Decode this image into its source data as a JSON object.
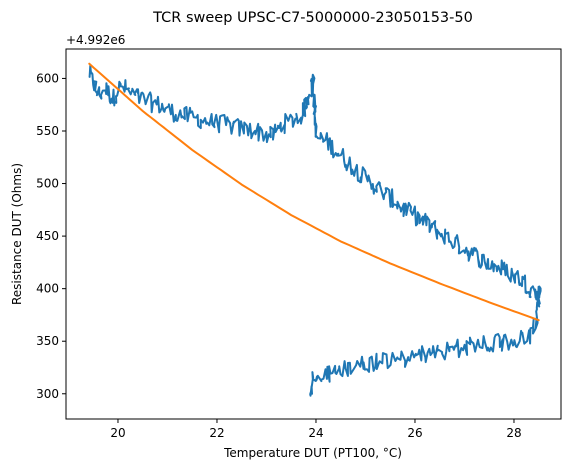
{
  "chart_data": {
    "type": "line",
    "title": "TCR sweep UPSC-C7-5000000-23050153-50",
    "xlabel": "Temperature DUT (PT100, °C)",
    "ylabel": "Resistance DUT (Ohms)",
    "offset_label": "+4.992e6",
    "xlim": [
      18.95,
      28.95
    ],
    "ylim": [
      276,
      628
    ],
    "x_ticks": [
      20,
      22,
      24,
      26,
      28
    ],
    "y_ticks": [
      300,
      350,
      400,
      450,
      500,
      550,
      600
    ],
    "grid": false,
    "legend": "none",
    "series": [
      {
        "color": "#1f77b4",
        "noise": 9,
        "anchors": {
          "x": [
            19.42,
            19.5,
            19.6,
            19.75,
            19.9,
            20.0,
            20.1,
            20.3,
            20.5,
            20.8,
            21.0,
            21.3,
            21.6,
            21.9,
            22.2,
            22.5,
            22.8,
            23.1,
            23.3,
            23.5,
            23.7,
            23.8,
            23.85,
            23.9,
            23.95,
            24.0,
            24.3,
            24.6,
            25.0,
            25.4,
            25.8,
            26.2,
            26.6,
            27.0,
            27.4,
            27.8,
            28.1,
            28.3,
            28.45,
            28.5,
            28.52,
            28.45,
            28.3,
            28.0,
            27.5,
            27.0,
            26.5,
            26.0,
            25.5,
            25.0,
            24.5,
            24.2,
            24.0,
            23.9,
            23.92
          ],
          "y": [
            605,
            595,
            585,
            590,
            580,
            590,
            592,
            585,
            580,
            575,
            570,
            565,
            562,
            558,
            556,
            552,
            550,
            545,
            555,
            560,
            565,
            575,
            585,
            590,
            600,
            545,
            537,
            522,
            505,
            490,
            475,
            463,
            450,
            438,
            426,
            418,
            410,
            402,
            395,
            390,
            402,
            368,
            355,
            350,
            348,
            344,
            340,
            336,
            332,
            328,
            324,
            318,
            316,
            310,
            300
          ]
        }
      },
      {
        "color": "#ff7f0e",
        "anchors": {
          "x": [
            19.42,
            20.5,
            21.5,
            22.5,
            23.5,
            24.5,
            25.5,
            26.5,
            27.5,
            28.5
          ],
          "y": [
            614,
            569,
            532,
            499,
            470,
            445,
            424,
            405,
            387,
            370
          ]
        }
      }
    ]
  }
}
